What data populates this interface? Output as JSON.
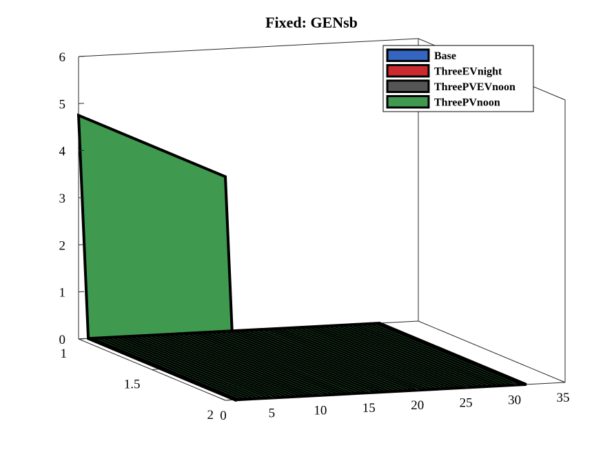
{
  "chart_data": {
    "type": "area",
    "view": "3d",
    "title": "Fixed: GENsb",
    "xlabel": "",
    "ylabel": "",
    "zlabel": "",
    "x_ticks": [
      "0",
      "5",
      "10",
      "15",
      "20",
      "25",
      "30",
      "35"
    ],
    "y_ticks": [
      "1",
      "1.5",
      "2"
    ],
    "z_ticks": [
      "0",
      "1",
      "2",
      "3",
      "4",
      "5",
      "6"
    ],
    "xlim": [
      0,
      35
    ],
    "ylim": [
      1,
      2
    ],
    "zlim": [
      0,
      6
    ],
    "grid": false,
    "box": true,
    "legend_position": "top-right",
    "series": [
      {
        "name": "Base",
        "color": "#3465c0",
        "surface": []
      },
      {
        "name": "ThreeEVnight",
        "color": "#cc2a30",
        "surface": []
      },
      {
        "name": "ThreePVEVnoon",
        "color": "#555555",
        "surface": []
      },
      {
        "name": "ThreePVnoon",
        "color": "#3f9a4f",
        "surface": [
          {
            "x": 0,
            "y": 1,
            "z": 4.75
          },
          {
            "x": 0,
            "y": 2,
            "z": 4.75
          },
          {
            "x": 1,
            "y": 1,
            "z": 0
          },
          {
            "x": 1,
            "y": 2,
            "z": 0
          },
          {
            "x": 31,
            "y": 1,
            "z": 0
          },
          {
            "x": 31,
            "y": 2,
            "z": 0
          }
        ],
        "ribbons": 31
      }
    ]
  }
}
